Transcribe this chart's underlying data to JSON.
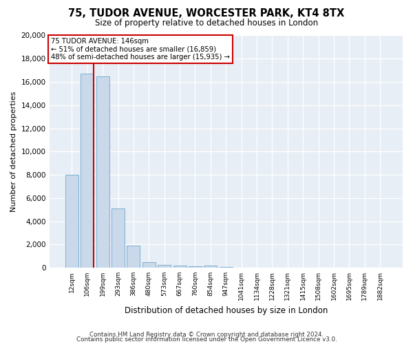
{
  "title": "75, TUDOR AVENUE, WORCESTER PARK, KT4 8TX",
  "subtitle": "Size of property relative to detached houses in London",
  "xlabel": "Distribution of detached houses by size in London",
  "ylabel": "Number of detached properties",
  "categories": [
    "12sqm",
    "106sqm",
    "199sqm",
    "293sqm",
    "386sqm",
    "480sqm",
    "573sqm",
    "667sqm",
    "760sqm",
    "854sqm",
    "947sqm",
    "1041sqm",
    "1134sqm",
    "1228sqm",
    "1321sqm",
    "1415sqm",
    "1508sqm",
    "1602sqm",
    "1695sqm",
    "1789sqm",
    "1882sqm"
  ],
  "values": [
    8000,
    16700,
    16500,
    5100,
    1900,
    500,
    270,
    160,
    100,
    210,
    50,
    20,
    10,
    5,
    5,
    5,
    3,
    3,
    3,
    3,
    3
  ],
  "bar_color": "#c9d9ea",
  "bar_edge_color": "#7aafd4",
  "vline_color": "#cc0000",
  "vline_pos": 1.4,
  "annotation_title": "75 TUDOR AVENUE: 146sqm",
  "annotation_line1": "← 51% of detached houses are smaller (16,859)",
  "annotation_line2": "48% of semi-detached houses are larger (15,935) →",
  "ylim": [
    0,
    20000
  ],
  "yticks": [
    0,
    2000,
    4000,
    6000,
    8000,
    10000,
    12000,
    14000,
    16000,
    18000,
    20000
  ],
  "footer1": "Contains HM Land Registry data © Crown copyright and database right 2024.",
  "footer2": "Contains public sector information licensed under the Open Government Licence v3.0.",
  "fig_bg_color": "#ffffff",
  "plot_bg_color": "#e8eef5"
}
